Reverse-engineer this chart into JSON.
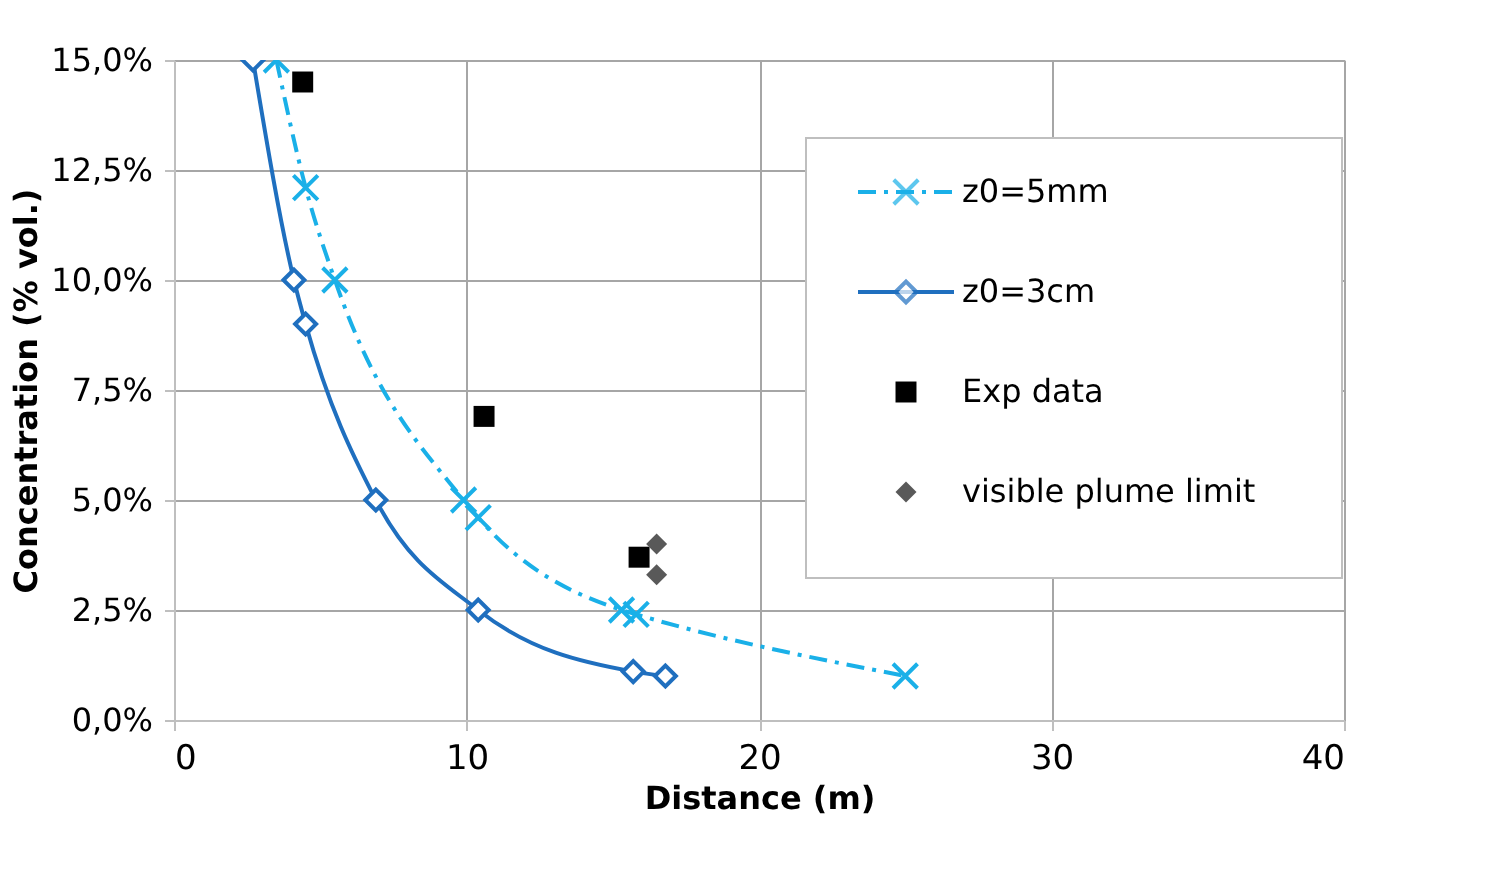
{
  "chart_data": {
    "type": "line",
    "xlabel": "Distance (m)",
    "ylabel": "Concentration (% vol.)",
    "xlim": [
      0,
      40
    ],
    "xticks": [
      0,
      10,
      20,
      30,
      40
    ],
    "ylim": [
      0,
      15
    ],
    "yticks": [
      {
        "value": 0,
        "label": "0,0%"
      },
      {
        "value": 2.5,
        "label": "2,5%"
      },
      {
        "value": 5,
        "label": "5,0%"
      },
      {
        "value": 7.5,
        "label": "7,5%"
      },
      {
        "value": 10,
        "label": "10,0%"
      },
      {
        "value": 12.5,
        "label": "12,5%"
      },
      {
        "value": 15,
        "label": "15,0%"
      }
    ],
    "grid": true,
    "legend": "top right",
    "series": [
      {
        "name": "z0=5mm",
        "color": "#1ab0e8",
        "marker": "cross",
        "line_style": "dashed",
        "x": [
          3.5,
          4.5,
          5.5,
          9.9,
          10.4,
          15.3,
          15.8,
          25
        ],
        "values": [
          15.0,
          12.1,
          10.0,
          5.0,
          4.6,
          2.5,
          2.4,
          1.0
        ]
      },
      {
        "name": "z0=3cm",
        "color": "#1f6fbf",
        "marker": "diamond",
        "line_style": "solid",
        "x": [
          2.7,
          4.1,
          4.5,
          6.9,
          10.4,
          15.7,
          16.8
        ],
        "values": [
          15.0,
          10.0,
          9.0,
          5.0,
          2.5,
          1.1,
          1.0
        ]
      },
      {
        "name": "Exp data",
        "type": "scatter",
        "color": "#000000",
        "marker": "square",
        "x": [
          4.4,
          10.6,
          15.9
        ],
        "values": [
          14.5,
          6.9,
          3.7
        ]
      },
      {
        "name": "visible plume limit",
        "type": "scatter",
        "color": "#595959",
        "marker": "diamond",
        "x": [
          16.5,
          16.5
        ],
        "values": [
          4.0,
          3.3
        ]
      }
    ]
  }
}
